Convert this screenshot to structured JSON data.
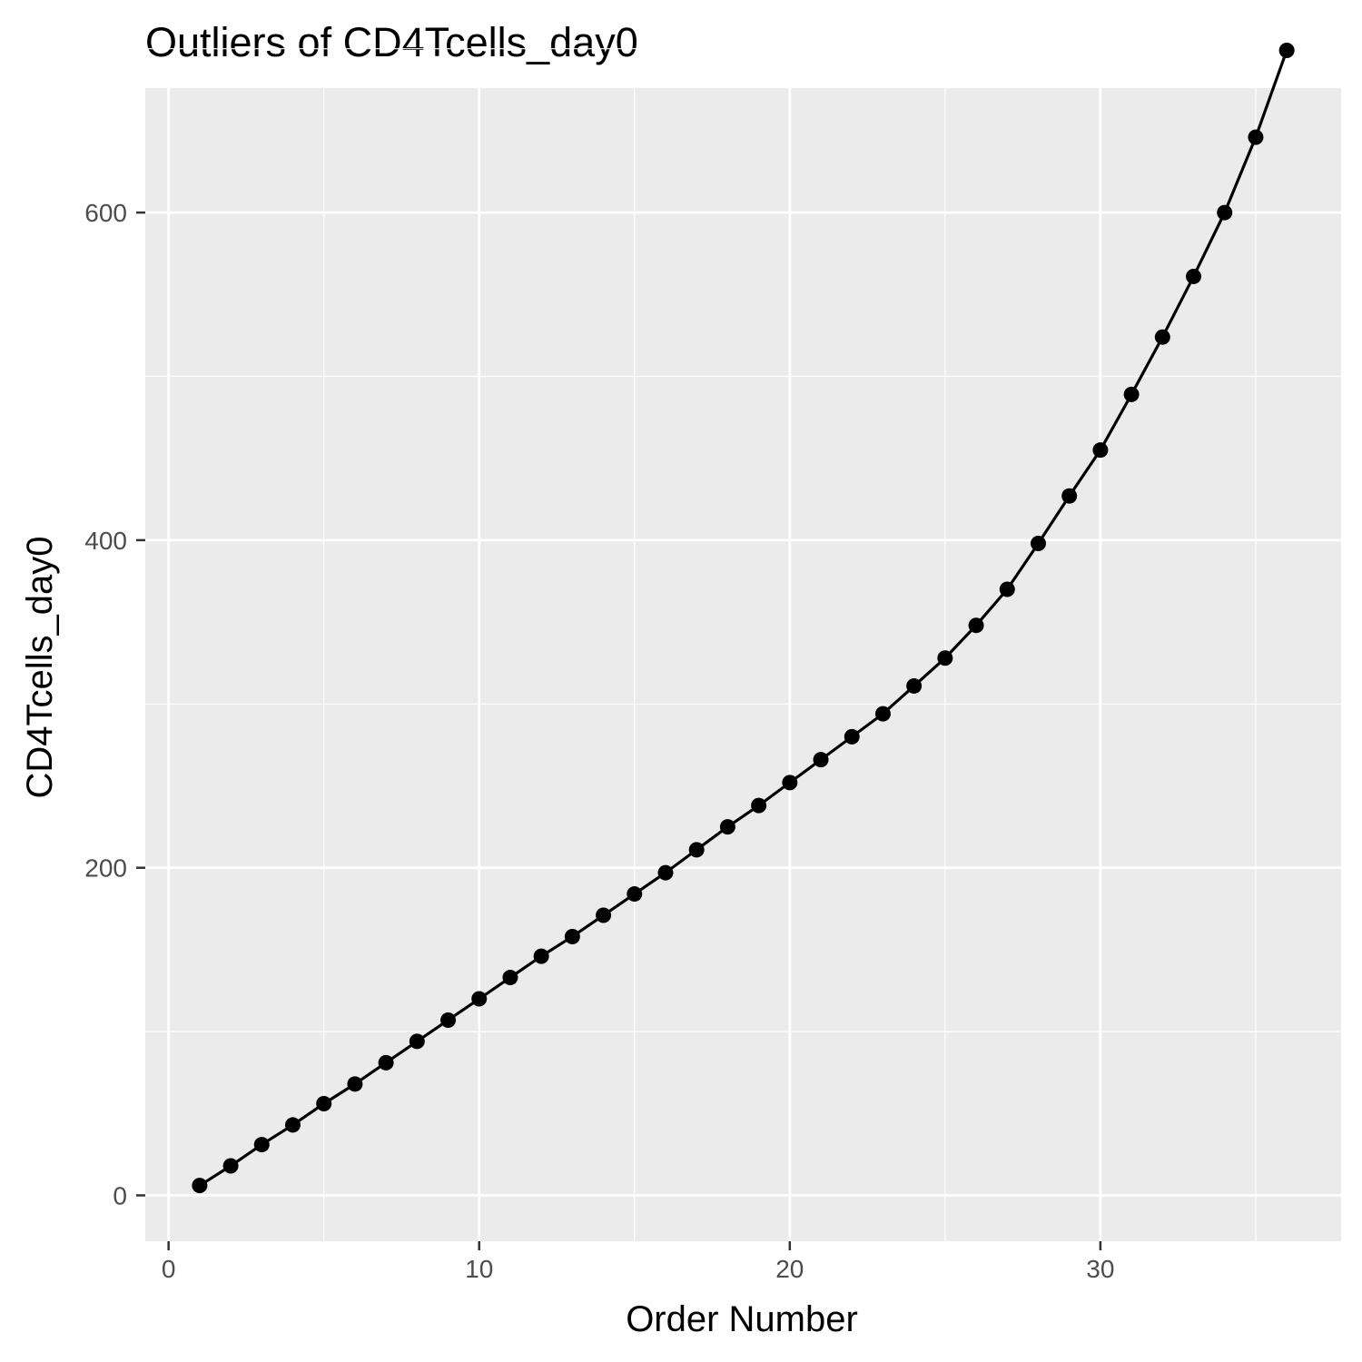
{
  "chart_data": {
    "type": "line",
    "title": "Outliers of CD4Tcells_day0",
    "xlabel": "Order Number",
    "ylabel": "CD4Tcells_day0",
    "xlim": [
      -0.75,
      37.75
    ],
    "ylim": [
      -28,
      676
    ],
    "x_ticks": [
      0,
      10,
      20,
      30
    ],
    "y_ticks": [
      0,
      200,
      400,
      600
    ],
    "x_minor": [
      5,
      15,
      25,
      35
    ],
    "y_minor": [
      100,
      300,
      500,
      700
    ],
    "grid": true,
    "legend": "none",
    "panel_color": "#ebebeb",
    "grid_color": "#ffffff",
    "line_color": "#000000",
    "point_color": "#000000",
    "series": [
      {
        "x": [
          1,
          2,
          3,
          4,
          5,
          6,
          7,
          8,
          9,
          10,
          11,
          12,
          13,
          14,
          15,
          16,
          17,
          18,
          19,
          20,
          21,
          22,
          23,
          24,
          25,
          26,
          27,
          28,
          29,
          30,
          31,
          32,
          33,
          34,
          35,
          36
        ],
        "y": [
          6,
          18,
          31,
          43,
          56,
          68,
          81,
          94,
          107,
          120,
          133,
          146,
          158,
          171,
          184,
          197,
          211,
          225,
          238,
          252,
          266,
          280,
          294,
          311,
          328,
          348,
          370,
          398,
          427,
          455,
          489,
          524,
          561,
          600,
          646,
          699
        ]
      }
    ]
  }
}
